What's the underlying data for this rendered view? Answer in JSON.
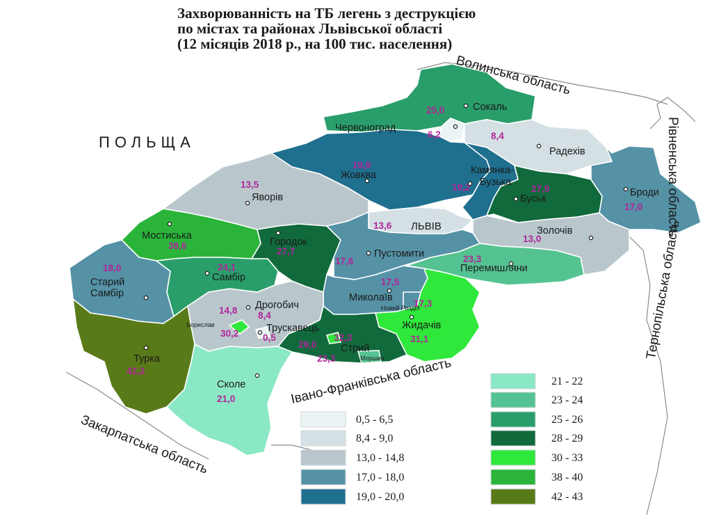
{
  "title": {
    "line1": "Захворюванність на ТБ легень з деструкцією",
    "line2": "по містах та районах Львівської області",
    "line3": "(12 місяців 2018 р., на 100 тис. населення)"
  },
  "neighbors": {
    "poland": "ПОЛЬЩА",
    "volyn": "Волинська область",
    "rivne": "Рівненська область",
    "ternopil": "Тернопільська область",
    "ivano_frankivsk": "Івано-Франківська область",
    "zakarpattia": "Закарпатська область"
  },
  "colors": {
    "c1": "#eaf4f4",
    "c2": "#d4e0e3",
    "c3": "#b9c7cc",
    "c4": "#5592a6",
    "c5": "#1f6f8e",
    "c6": "#8be8c4",
    "c7": "#55c391",
    "c8": "#2a9e6a",
    "c9": "#116a3c",
    "c10": "#2fe83b",
    "c11": "#2ab53a",
    "c12": "#597a18"
  },
  "districts": {
    "sokal": {
      "name": "Сокаль",
      "value": "25,0"
    },
    "chervonohrad": {
      "name": "Червоноград",
      "value": "6,2"
    },
    "radekhiv": {
      "name": "Радехів",
      "value": "8,4"
    },
    "zhovkva": {
      "name": "Жовква",
      "value": "19,9"
    },
    "kamianka": {
      "name1": "Камянка-",
      "name2": "Бузька",
      "value": "19,2"
    },
    "busk": {
      "name": "Буськ",
      "value": "27,9"
    },
    "brody": {
      "name": "Броди",
      "value": "17,0"
    },
    "yavoriv": {
      "name": "Яворів",
      "value": "13,5"
    },
    "lviv": {
      "name": "ЛЬВІВ",
      "value": "13,6"
    },
    "zolochiv": {
      "name": "Золочів",
      "value": "13,0"
    },
    "mostyska": {
      "name": "Мостиська",
      "value": "38,6"
    },
    "horodok": {
      "name": "Городок",
      "value": "27,7"
    },
    "pustomyty": {
      "name": "Пустомити",
      "value": "17,6"
    },
    "peremyshliany": {
      "name": "Перемишляни",
      "value": "23,3"
    },
    "staryi_sambir": {
      "name1": "Старий",
      "name2": "Самбір",
      "value": "18,0"
    },
    "sambir": {
      "name": "Самбір",
      "value": "24,1"
    },
    "mykolaiv": {
      "name": "Миколаїв",
      "value": "17,5"
    },
    "novyi_rozdil": {
      "name": "Новий Розділ",
      "value": "17,3"
    },
    "drohobych": {
      "name": "Дрогобич",
      "value": "14,8"
    },
    "drohobych_city": {
      "value": "8,4"
    },
    "boryslav": {
      "name": "Борислав",
      "value": "30,2"
    },
    "truskavets": {
      "name": "Трускавець",
      "value": "0,5"
    },
    "stryi": {
      "name": "Стрий",
      "value": "29,0"
    },
    "stryi_city": {
      "value": "32,3"
    },
    "morshyn": {
      "name": "Моршин",
      "value": "23,3"
    },
    "zhydachiv": {
      "name": "Жидачів",
      "value": "31,1"
    },
    "turka": {
      "name": "Турка",
      "value": "42,2"
    },
    "skole": {
      "name": "Сколе",
      "value": "21,0"
    }
  },
  "legend": [
    {
      "label": "0,5 - 6,5",
      "color": "#eaf4f4"
    },
    {
      "label": "8,4 - 9,0",
      "color": "#d4e0e3"
    },
    {
      "label": "13,0 - 14,8",
      "color": "#b9c7cc"
    },
    {
      "label": "17,0 - 18,0",
      "color": "#5592a6"
    },
    {
      "label": "19,0 - 20,0",
      "color": "#1f6f8e"
    },
    {
      "label": "21 - 22",
      "color": "#8be8c4"
    },
    {
      "label": "23 - 24",
      "color": "#55c391"
    },
    {
      "label": "25 - 26",
      "color": "#2a9e6a"
    },
    {
      "label": "28 - 29",
      "color": "#116a3c"
    },
    {
      "label": "30 - 33",
      "color": "#2fe83b"
    },
    {
      "label": "38 - 40",
      "color": "#2ab53a"
    },
    {
      "label": "42 - 43",
      "color": "#597a18"
    }
  ]
}
